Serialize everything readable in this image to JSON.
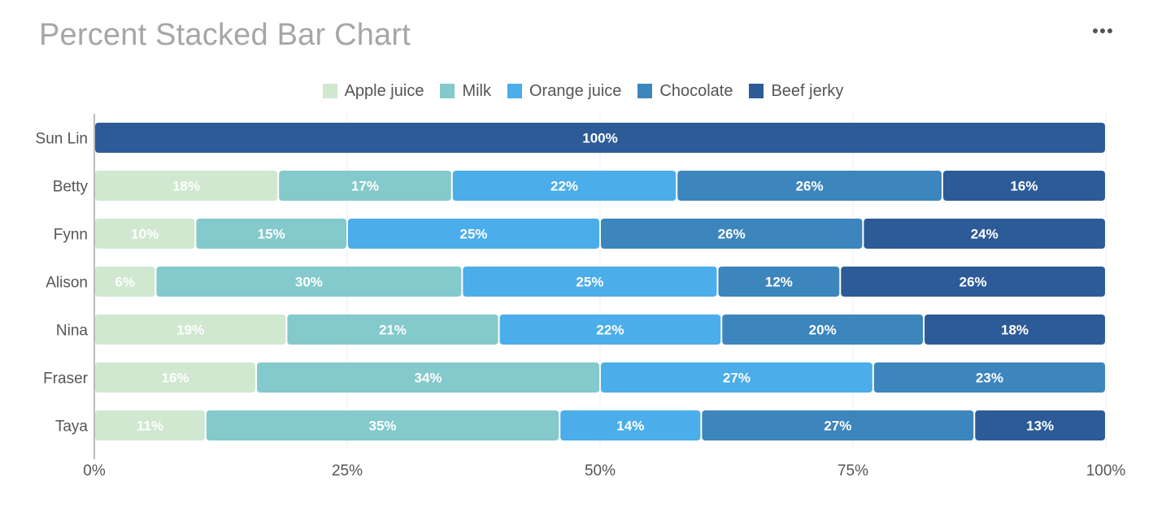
{
  "title": "Percent Stacked Bar Chart",
  "menu_icon": "more-horizontal-icon",
  "chart_data": {
    "type": "bar",
    "orientation": "horizontal",
    "stacked": "percent",
    "title": "Percent Stacked Bar Chart",
    "categories": [
      "Sun Lin",
      "Betty",
      "Fynn",
      "Alison",
      "Nina",
      "Fraser",
      "Taya"
    ],
    "series": [
      {
        "name": "Apple juice",
        "color": "#cfe8cf",
        "values": [
          0,
          18,
          10,
          6,
          19,
          16,
          11
        ]
      },
      {
        "name": "Milk",
        "color": "#84c9cb",
        "values": [
          0,
          17,
          15,
          30,
          21,
          34,
          35
        ]
      },
      {
        "name": "Orange juice",
        "color": "#4badea",
        "values": [
          0,
          22,
          25,
          25,
          22,
          27,
          14
        ]
      },
      {
        "name": "Chocolate",
        "color": "#3d85bd",
        "values": [
          0,
          26,
          26,
          12,
          20,
          23,
          27
        ]
      },
      {
        "name": "Beef jerky",
        "color": "#2d5b98",
        "values": [
          100,
          16,
          24,
          26,
          18,
          0,
          13
        ]
      }
    ],
    "xlim": [
      0,
      100
    ],
    "x_ticks": [
      "0%",
      "25%",
      "50%",
      "75%",
      "100%"
    ],
    "xlabel": "",
    "ylabel": "",
    "legend": "top-center",
    "grid": true
  }
}
